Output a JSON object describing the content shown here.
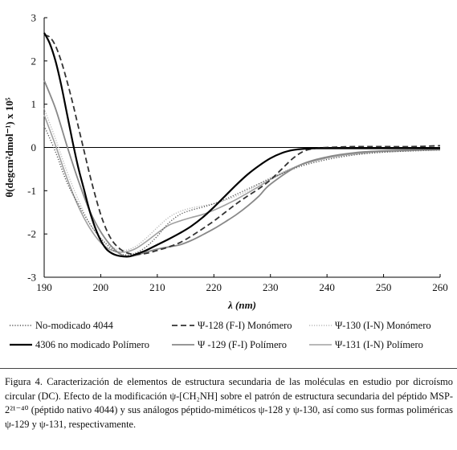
{
  "chart_data": {
    "type": "line",
    "xlabel": "λ (nm)",
    "ylabel": "θ(degcm²dmol⁻¹) x 10⁵",
    "xlim": [
      190,
      260
    ],
    "ylim": [
      -3,
      3
    ],
    "xticks": [
      "190",
      "200",
      "210",
      "220",
      "230",
      "240",
      "250",
      "260"
    ],
    "yticks": [
      "3",
      "2",
      "1",
      "0",
      "-1",
      "-2",
      "-3"
    ],
    "zero_line": true,
    "grid": false,
    "legend_position": "bottom",
    "series": [
      {
        "name": "No-modicado 4044",
        "color": "#555555",
        "dash": "1.2,2",
        "width": 1.4,
        "x": [
          190,
          192,
          194,
          196,
          198,
          200,
          202,
          204,
          206,
          208,
          210,
          212,
          214,
          216,
          218,
          220,
          222,
          225,
          230,
          235,
          240,
          245,
          250,
          255,
          260
        ],
        "y": [
          0.5,
          -0.1,
          -0.8,
          -1.3,
          -1.75,
          -2.1,
          -2.35,
          -2.48,
          -2.45,
          -2.3,
          -2.05,
          -1.75,
          -1.55,
          -1.45,
          -1.38,
          -1.3,
          -1.2,
          -1.02,
          -0.72,
          -0.45,
          -0.28,
          -0.17,
          -0.11,
          -0.08,
          -0.06
        ]
      },
      {
        "name": "4306 no modicado Polímero",
        "color": "#000000",
        "dash": "",
        "width": 2.2,
        "x": [
          190,
          191,
          192,
          193,
          194,
          195,
          196,
          197,
          198,
          199,
          200,
          201,
          202,
          203,
          204,
          205,
          206,
          208,
          210,
          212,
          214,
          216,
          218,
          220,
          222,
          224,
          226,
          228,
          230,
          232,
          234,
          236,
          238,
          240,
          245,
          250,
          255,
          260
        ],
        "y": [
          2.65,
          2.4,
          2.0,
          1.45,
          0.8,
          0.15,
          -0.45,
          -0.95,
          -1.45,
          -1.85,
          -2.15,
          -2.35,
          -2.45,
          -2.5,
          -2.52,
          -2.52,
          -2.48,
          -2.38,
          -2.25,
          -2.12,
          -1.98,
          -1.82,
          -1.62,
          -1.38,
          -1.12,
          -0.86,
          -0.62,
          -0.42,
          -0.25,
          -0.13,
          -0.06,
          -0.03,
          -0.02,
          -0.02,
          -0.02,
          -0.02,
          -0.02,
          -0.02
        ]
      },
      {
        "name": "Ψ-128 (F-I) Monómero",
        "color": "#333333",
        "dash": "7,4",
        "width": 1.8,
        "x": [
          190,
          191,
          192,
          193,
          194,
          195,
          196,
          197,
          198,
          199,
          200,
          201,
          202,
          203,
          204,
          205,
          206,
          208,
          210,
          212,
          214,
          216,
          218,
          220,
          222,
          224,
          226,
          228,
          230,
          232,
          234,
          236,
          238,
          240,
          245,
          250,
          255,
          260
        ],
        "y": [
          2.6,
          2.55,
          2.35,
          2.0,
          1.55,
          1.05,
          0.5,
          -0.05,
          -0.6,
          -1.1,
          -1.55,
          -1.9,
          -2.15,
          -2.3,
          -2.4,
          -2.45,
          -2.47,
          -2.45,
          -2.38,
          -2.3,
          -2.2,
          -2.05,
          -1.88,
          -1.7,
          -1.5,
          -1.3,
          -1.12,
          -0.95,
          -0.75,
          -0.5,
          -0.25,
          -0.08,
          -0.02,
          0.0,
          0.02,
          0.02,
          0.02,
          0.04
        ]
      },
      {
        "name": "Ψ -129 (F-I) Polímero",
        "color": "#888888",
        "dash": "",
        "width": 1.8,
        "x": [
          190,
          192,
          194,
          196,
          198,
          200,
          202,
          204,
          206,
          208,
          210,
          212,
          214,
          216,
          218,
          220,
          222,
          224,
          226,
          228,
          230,
          235,
          240,
          245,
          250,
          255,
          260
        ],
        "y": [
          1.55,
          0.9,
          0.05,
          -0.75,
          -1.45,
          -1.95,
          -2.3,
          -2.5,
          -2.5,
          -2.42,
          -2.35,
          -2.3,
          -2.25,
          -2.15,
          -2.02,
          -1.88,
          -1.72,
          -1.55,
          -1.35,
          -1.12,
          -0.85,
          -0.42,
          -0.22,
          -0.12,
          -0.08,
          -0.06,
          -0.05
        ]
      },
      {
        "name": "Ψ-130 (I-N) Monómero",
        "color": "#bbbbbb",
        "dash": "1.2,1.8",
        "width": 1.4,
        "x": [
          190,
          192,
          194,
          196,
          198,
          200,
          202,
          204,
          206,
          208,
          210,
          212,
          214,
          216,
          218,
          220,
          222,
          224,
          226,
          228,
          230,
          235,
          240,
          245,
          250,
          255,
          260
        ],
        "y": [
          0.9,
          0.2,
          -0.55,
          -1.2,
          -1.75,
          -2.1,
          -2.3,
          -2.38,
          -2.3,
          -2.1,
          -1.85,
          -1.62,
          -1.48,
          -1.4,
          -1.35,
          -1.3,
          -1.22,
          -1.12,
          -1.0,
          -0.85,
          -0.7,
          -0.42,
          -0.25,
          -0.16,
          -0.11,
          -0.08,
          -0.06
        ]
      },
      {
        "name": "Ψ-131 (I-N) Polímero",
        "color": "#a0a0a0",
        "dash": "",
        "width": 1.6,
        "x": [
          190,
          192,
          194,
          196,
          198,
          200,
          202,
          204,
          206,
          208,
          210,
          212,
          214,
          216,
          218,
          220,
          222,
          224,
          226,
          228,
          230,
          235,
          240,
          245,
          250,
          255,
          260
        ],
        "y": [
          0.75,
          0.05,
          -0.7,
          -1.35,
          -1.85,
          -2.2,
          -2.38,
          -2.42,
          -2.35,
          -2.18,
          -1.98,
          -1.8,
          -1.7,
          -1.62,
          -1.55,
          -1.45,
          -1.33,
          -1.2,
          -1.05,
          -0.9,
          -0.74,
          -0.42,
          -0.24,
          -0.14,
          -0.09,
          -0.07,
          -0.05
        ]
      }
    ]
  },
  "caption": "Figura 4. Caracterización de elementos de estructura secundaria de las moléculas en estudio por dicroísmo circular (DC). Efecto de la modificación ψ-[CH₂NH] sobre el patrón de estructura secundaria del péptido MSP-2²¹⁻⁴⁰ (péptido nativo 4044) y sus análogos péptido-miméticos ψ-128 y ψ-130, así como sus formas poliméricas ψ-129 y ψ-131, respectivamente."
}
